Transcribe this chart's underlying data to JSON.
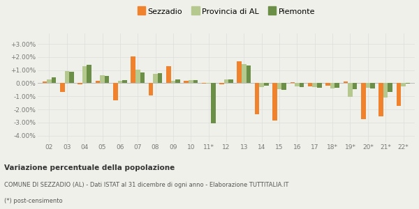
{
  "years": [
    "02",
    "03",
    "04",
    "05",
    "06",
    "07",
    "08",
    "09",
    "10",
    "11*",
    "12",
    "13",
    "14",
    "15",
    "16",
    "17",
    "18*",
    "19*",
    "20*",
    "21*",
    "22*"
  ],
  "sezzadio": [
    0.15,
    -0.65,
    -0.1,
    0.2,
    -1.3,
    2.05,
    -0.95,
    1.3,
    0.2,
    -0.05,
    -0.1,
    1.65,
    -2.35,
    -2.85,
    0.1,
    -0.25,
    -0.2,
    0.15,
    -2.75,
    -2.55,
    -1.75
  ],
  "provincia_al": [
    0.3,
    0.95,
    1.3,
    0.6,
    0.2,
    1.05,
    0.7,
    0.2,
    0.25,
    -0.05,
    0.3,
    1.45,
    -0.3,
    -0.45,
    -0.25,
    -0.3,
    -0.4,
    -1.05,
    -0.35,
    -1.1,
    -0.25
  ],
  "piemonte": [
    0.45,
    0.85,
    1.4,
    0.55,
    0.25,
    0.8,
    0.75,
    0.3,
    0.25,
    -3.05,
    0.3,
    1.35,
    -0.2,
    -0.5,
    -0.3,
    -0.35,
    -0.35,
    -0.45,
    -0.4,
    -0.65,
    -0.05
  ],
  "color_sezzadio": "#f0822d",
  "color_provincia": "#b5c98e",
  "color_piemonte": "#6b8f47",
  "bg_color": "#f0f0eb",
  "ylim": [
    -4.5,
    3.8
  ],
  "yticks": [
    -4.0,
    -3.0,
    -2.0,
    -1.0,
    0.0,
    1.0,
    2.0,
    3.0
  ],
  "title_bold": "Variazione percentuale della popolazione",
  "subtitle": "COMUNE DI SEZZADIO (AL) - Dati ISTAT al 31 dicembre di ogni anno - Elaborazione TUTTITALIA.IT",
  "footnote": "(*) post-censimento",
  "legend_labels": [
    "Sezzadio",
    "Provincia di AL",
    "Piemonte"
  ]
}
